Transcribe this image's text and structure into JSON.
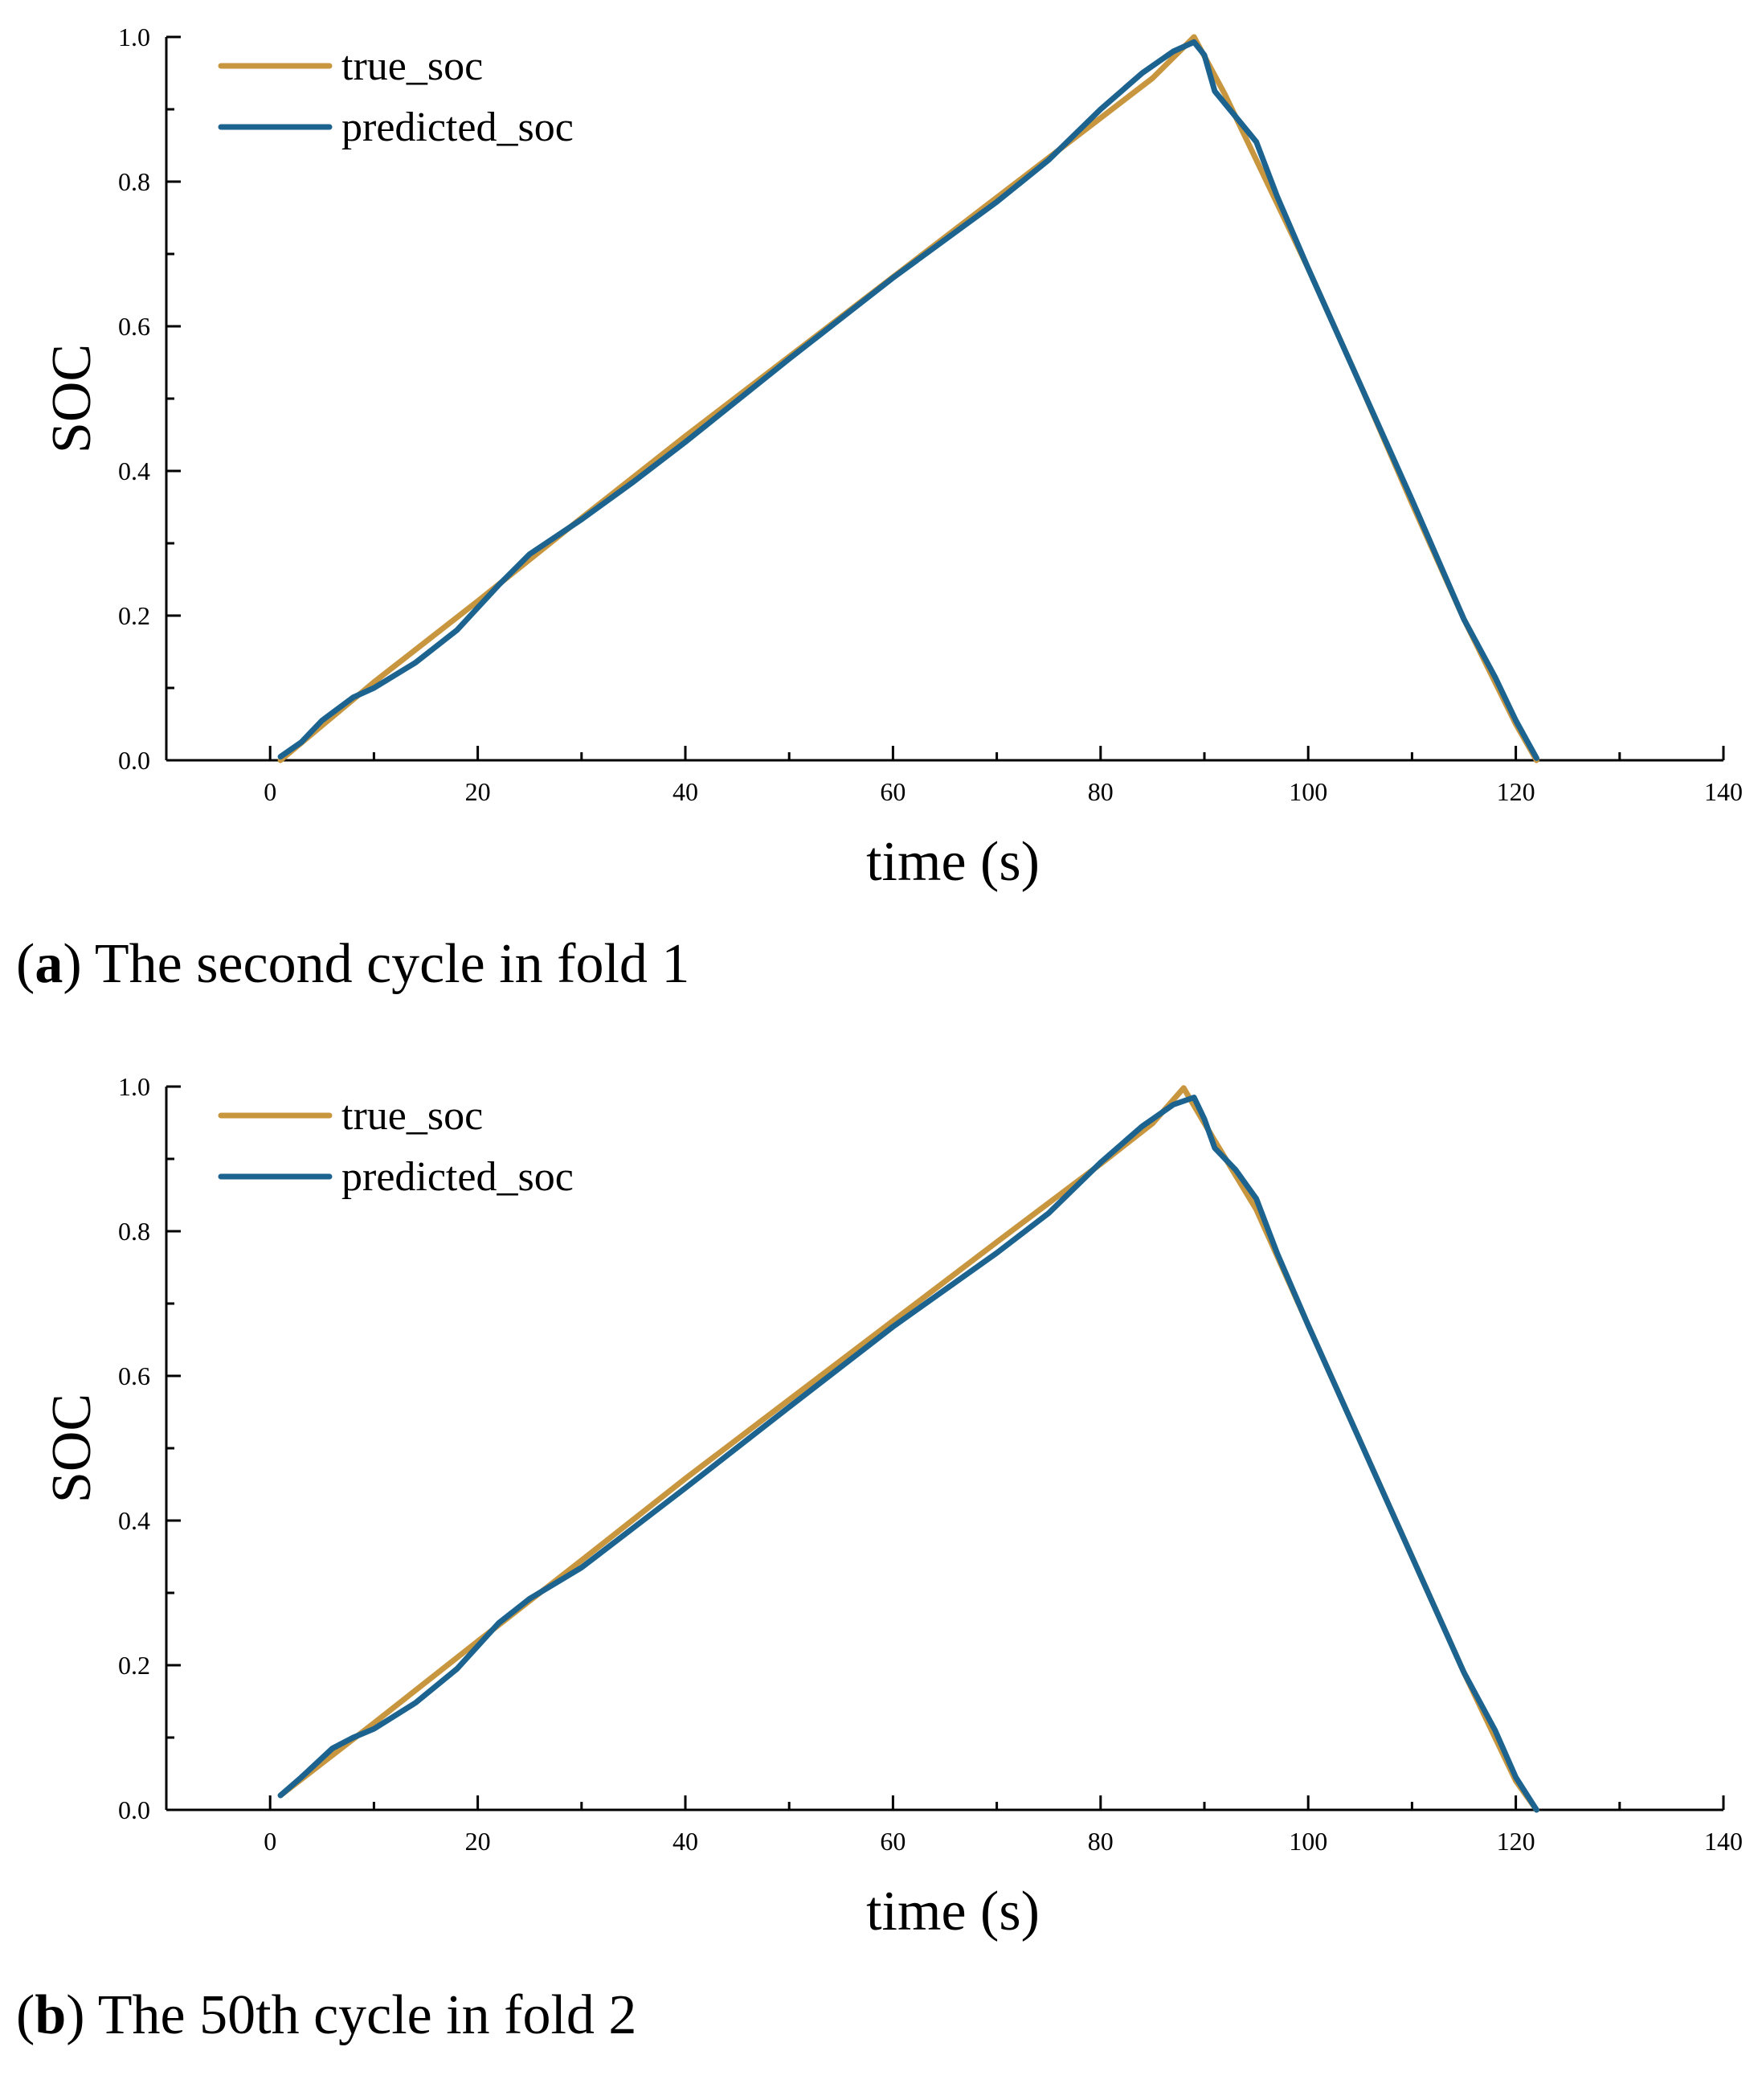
{
  "colors": {
    "true_soc": "#C8963E",
    "predicted_soc": "#1C6390",
    "axis": "#000000"
  },
  "chart_data": [
    {
      "type": "line",
      "caption_letter": "a",
      "caption_text": "The second cycle in fold 1",
      "xlabel": "time (s)",
      "ylabel": "SOC",
      "xlim": [
        -10,
        140
      ],
      "ylim": [
        0,
        1.0
      ],
      "xticks": [
        0,
        20,
        40,
        60,
        80,
        100,
        120,
        140
      ],
      "yticks": [
        0.0,
        0.2,
        0.4,
        0.6,
        0.8,
        1.0
      ],
      "xtick_labels": [
        "0",
        "20",
        "40",
        "60",
        "80",
        "100",
        "120",
        "140"
      ],
      "ytick_labels": [
        "0.0",
        "0.2",
        "0.4",
        "0.6",
        "0.8",
        "1.0"
      ],
      "grid": false,
      "legend": "top-left",
      "series": [
        {
          "name": "true_soc",
          "x": [
            1,
            10,
            20,
            30,
            40,
            50,
            60,
            70,
            80,
            85,
            89,
            92,
            95,
            100,
            105,
            110,
            115,
            120,
            122
          ],
          "y": [
            0.0,
            0.108,
            0.22,
            0.335,
            0.448,
            0.558,
            0.668,
            0.778,
            0.888,
            0.943,
            1.0,
            0.92,
            0.83,
            0.68,
            0.52,
            0.355,
            0.195,
            0.05,
            0.0
          ]
        },
        {
          "name": "predicted_soc",
          "x": [
            1,
            3,
            5,
            8,
            10,
            14,
            18,
            22,
            25,
            30,
            35,
            40,
            50,
            60,
            70,
            75,
            80,
            84,
            87,
            89,
            90,
            91,
            93,
            95,
            97,
            100,
            105,
            110,
            115,
            118,
            120,
            122
          ],
          "y": [
            0.005,
            0.025,
            0.055,
            0.087,
            0.1,
            0.135,
            0.18,
            0.242,
            0.285,
            0.333,
            0.385,
            0.44,
            0.555,
            0.667,
            0.772,
            0.83,
            0.9,
            0.95,
            0.98,
            0.993,
            0.975,
            0.925,
            0.89,
            0.855,
            0.78,
            0.68,
            0.52,
            0.36,
            0.195,
            0.115,
            0.055,
            0.003
          ]
        }
      ]
    },
    {
      "type": "line",
      "caption_letter": "b",
      "caption_text": "The 50th cycle in fold 2",
      "xlabel": "time (s)",
      "ylabel": "SOC",
      "xlim": [
        -10,
        140
      ],
      "ylim": [
        0,
        1.0
      ],
      "xticks": [
        0,
        20,
        40,
        60,
        80,
        100,
        120,
        140
      ],
      "yticks": [
        0.0,
        0.2,
        0.4,
        0.6,
        0.8,
        1.0
      ],
      "xtick_labels": [
        "0",
        "20",
        "40",
        "60",
        "80",
        "100",
        "120",
        "140"
      ],
      "ytick_labels": [
        "0.0",
        "0.2",
        "0.4",
        "0.6",
        "0.8",
        "1.0"
      ],
      "grid": false,
      "legend": "top-left",
      "series": [
        {
          "name": "true_soc",
          "x": [
            1,
            10,
            20,
            30,
            40,
            50,
            60,
            70,
            80,
            85,
            88,
            91,
            95,
            100,
            105,
            110,
            115,
            120,
            122
          ],
          "y": [
            0.02,
            0.12,
            0.233,
            0.345,
            0.458,
            0.567,
            0.676,
            0.785,
            0.893,
            0.949,
            0.998,
            0.925,
            0.83,
            0.67,
            0.51,
            0.35,
            0.19,
            0.04,
            0.0
          ]
        },
        {
          "name": "predicted_soc",
          "x": [
            1,
            3,
            6,
            8,
            10,
            14,
            18,
            22,
            25,
            30,
            35,
            40,
            50,
            60,
            70,
            75,
            80,
            84,
            87,
            89,
            90,
            91,
            93,
            95,
            97,
            100,
            105,
            110,
            115,
            118,
            120,
            122
          ],
          "y": [
            0.02,
            0.045,
            0.085,
            0.1,
            0.112,
            0.148,
            0.195,
            0.258,
            0.292,
            0.335,
            0.39,
            0.445,
            0.557,
            0.668,
            0.77,
            0.825,
            0.895,
            0.945,
            0.975,
            0.985,
            0.955,
            0.915,
            0.885,
            0.845,
            0.77,
            0.67,
            0.51,
            0.35,
            0.19,
            0.11,
            0.045,
            0.0
          ]
        }
      ]
    }
  ]
}
